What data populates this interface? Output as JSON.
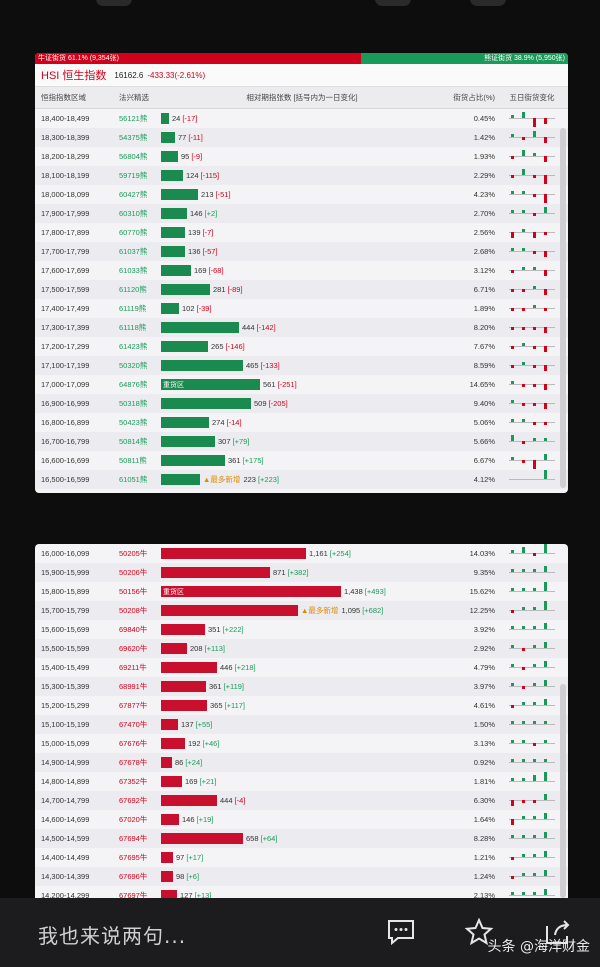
{
  "ratio": {
    "bull_label": "牛证街货 61.1% (9,354张)",
    "bear_label": "熊证街货 38.9% (5,950张)",
    "bull_fraction": 0.611
  },
  "index": {
    "name": "HSI 恒生指数",
    "price": "16162.6",
    "change": "-433.33(-2.61%)"
  },
  "headers": {
    "range": "恒指指数区域",
    "code": "法兴精选",
    "bar": "相对期指张数 [括号内为一日变化]",
    "pct": "街货占比(%)",
    "spark": "五日街货变化"
  },
  "bear_rows": [
    {
      "range": "18,400-18,499",
      "code": "56121熊",
      "value": "24",
      "change": "[-17]",
      "count": 24,
      "pct": "0.45%",
      "spark": [
        1,
        2,
        -3,
        -2
      ]
    },
    {
      "range": "18,300-18,399",
      "code": "54375熊",
      "value": "77",
      "change": "[-11]",
      "count": 77,
      "pct": "1.42%",
      "spark": [
        1,
        -1,
        2,
        -2
      ]
    },
    {
      "range": "18,200-18,299",
      "code": "56804熊",
      "value": "95",
      "change": "[-9]",
      "count": 95,
      "pct": "1.93%",
      "spark": [
        -1,
        2,
        1,
        -2
      ]
    },
    {
      "range": "18,100-18,199",
      "code": "59719熊",
      "value": "124",
      "change": "[-115]",
      "count": 124,
      "pct": "2.29%",
      "spark": [
        -1,
        2,
        -1,
        -3
      ]
    },
    {
      "range": "18,000-18,099",
      "code": "60427熊",
      "value": "213",
      "change": "[-51]",
      "count": 213,
      "pct": "4.23%",
      "spark": [
        1,
        1,
        -1,
        -3
      ]
    },
    {
      "range": "17,900-17,999",
      "code": "60310熊",
      "value": "146",
      "change": "[+2]",
      "count": 146,
      "pct": "2.70%",
      "spark": [
        1,
        1,
        -1,
        2
      ]
    },
    {
      "range": "17,800-17,899",
      "code": "60770熊",
      "value": "139",
      "change": "[-7]",
      "count": 139,
      "pct": "2.56%",
      "spark": [
        -2,
        1,
        -2,
        -1
      ]
    },
    {
      "range": "17,700-17,799",
      "code": "61037熊",
      "value": "136",
      "change": "[-57]",
      "count": 136,
      "pct": "2.68%",
      "spark": [
        1,
        1,
        -1,
        -2
      ]
    },
    {
      "range": "17,600-17,699",
      "code": "61033熊",
      "value": "169",
      "change": "[-68]",
      "count": 169,
      "pct": "3.12%",
      "spark": [
        -1,
        1,
        1,
        -2
      ]
    },
    {
      "range": "17,500-17,599",
      "code": "61120熊",
      "value": "281",
      "change": "[-89]",
      "count": 281,
      "pct": "6.71%",
      "spark": [
        -1,
        -1,
        1,
        -2
      ]
    },
    {
      "range": "17,400-17,499",
      "code": "61119熊",
      "value": "102",
      "change": "[-39]",
      "count": 102,
      "pct": "1.89%",
      "spark": [
        -1,
        -1,
        1,
        -1
      ]
    },
    {
      "range": "17,300-17,399",
      "code": "61118熊",
      "value": "444",
      "change": "[-142]",
      "count": 444,
      "pct": "8.20%",
      "spark": [
        -1,
        -1,
        -1,
        -2
      ]
    },
    {
      "range": "17,200-17,299",
      "code": "61423熊",
      "value": "265",
      "change": "[-146]",
      "count": 265,
      "pct": "7.67%",
      "spark": [
        -1,
        1,
        -1,
        -2
      ]
    },
    {
      "range": "17,100-17,199",
      "code": "50320熊",
      "value": "465",
      "change": "[-133]",
      "count": 465,
      "pct": "8.59%",
      "spark": [
        -1,
        1,
        -1,
        -2
      ]
    },
    {
      "range": "17,000-17,099",
      "code": "64876熊",
      "value": "561",
      "change": "[-251]",
      "count": 561,
      "pct": "14.65%",
      "spark": [
        1,
        -1,
        -1,
        -2
      ],
      "label": "重货区"
    },
    {
      "range": "16,900-16,999",
      "code": "50318熊",
      "value": "509",
      "change": "[-205]",
      "count": 509,
      "pct": "9.40%",
      "spark": [
        1,
        -1,
        -1,
        -2
      ]
    },
    {
      "range": "16,800-16,899",
      "code": "50423熊",
      "value": "274",
      "change": "[-14]",
      "count": 274,
      "pct": "5.06%",
      "spark": [
        1,
        1,
        -1,
        -1
      ]
    },
    {
      "range": "16,700-16,799",
      "code": "50814熊",
      "value": "307",
      "change": "[+79]",
      "count": 307,
      "pct": "5.66%",
      "spark": [
        2,
        -1,
        1,
        1
      ]
    },
    {
      "range": "16,600-16,699",
      "code": "50811熊",
      "value": "361",
      "change": "[+175]",
      "count": 361,
      "pct": "6.67%",
      "spark": [
        1,
        -1,
        -3,
        2
      ]
    },
    {
      "range": "16,500-16,599",
      "code": "61051熊",
      "value": "223",
      "change": "[+223]",
      "count": 223,
      "pct": "4.12%",
      "spark": [
        0,
        0,
        0,
        3
      ],
      "note": "▲最多新增"
    }
  ],
  "bull_rows": [
    {
      "range": "16,000-16,099",
      "code": "50205牛",
      "value": "1,161",
      "change": "[+254]",
      "count": 1161,
      "pct": "14.03%",
      "spark": [
        1,
        2,
        -1,
        3
      ]
    },
    {
      "range": "15,900-15,999",
      "code": "50206牛",
      "value": "871",
      "change": "[+382]",
      "count": 871,
      "pct": "9.35%",
      "spark": [
        1,
        1,
        1,
        2
      ]
    },
    {
      "range": "15,800-15,899",
      "code": "50156牛",
      "value": "1,438",
      "change": "[+493]",
      "count": 1438,
      "pct": "15.62%",
      "spark": [
        1,
        1,
        1,
        3
      ],
      "label": "重货区"
    },
    {
      "range": "15,700-15,799",
      "code": "50208牛",
      "value": "1,095",
      "change": "[+682]",
      "count": 1095,
      "pct": "12.25%",
      "spark": [
        -1,
        1,
        1,
        3
      ],
      "note": "▲最多新增"
    },
    {
      "range": "15,600-15,699",
      "code": "69840牛",
      "value": "351",
      "change": "[+222]",
      "count": 351,
      "pct": "3.92%",
      "spark": [
        1,
        1,
        1,
        2
      ]
    },
    {
      "range": "15,500-15,599",
      "code": "69620牛",
      "value": "208",
      "change": "[+113]",
      "count": 208,
      "pct": "2.92%",
      "spark": [
        1,
        -1,
        1,
        2
      ]
    },
    {
      "range": "15,400-15,499",
      "code": "69211牛",
      "value": "446",
      "change": "[+218]",
      "count": 446,
      "pct": "4.79%",
      "spark": [
        1,
        -1,
        1,
        2
      ]
    },
    {
      "range": "15,300-15,399",
      "code": "68991牛",
      "value": "361",
      "change": "[+119]",
      "count": 361,
      "pct": "3.97%",
      "spark": [
        1,
        -1,
        1,
        2
      ]
    },
    {
      "range": "15,200-15,299",
      "code": "67877牛",
      "value": "365",
      "change": "[+117]",
      "count": 365,
      "pct": "4.61%",
      "spark": [
        -1,
        1,
        1,
        2
      ]
    },
    {
      "range": "15,100-15,199",
      "code": "67470牛",
      "value": "137",
      "change": "[+55]",
      "count": 137,
      "pct": "1.50%",
      "spark": [
        1,
        1,
        1,
        1
      ]
    },
    {
      "range": "15,000-15,099",
      "code": "67676牛",
      "value": "192",
      "change": "[+46]",
      "count": 192,
      "pct": "3.13%",
      "spark": [
        1,
        1,
        -1,
        1
      ]
    },
    {
      "range": "14,900-14,999",
      "code": "67678牛",
      "value": "86",
      "change": "[+24]",
      "count": 86,
      "pct": "0.92%",
      "spark": [
        1,
        1,
        1,
        1
      ]
    },
    {
      "range": "14,800-14,899",
      "code": "67352牛",
      "value": "169",
      "change": "[+21]",
      "count": 169,
      "pct": "1.81%",
      "spark": [
        1,
        1,
        2,
        3
      ]
    },
    {
      "range": "14,700-14,799",
      "code": "67692牛",
      "value": "444",
      "change": "[-4]",
      "count": 444,
      "pct": "6.30%",
      "spark": [
        -2,
        -1,
        -1,
        2
      ]
    },
    {
      "range": "14,600-14,699",
      "code": "67020牛",
      "value": "146",
      "change": "[+19]",
      "count": 146,
      "pct": "1.64%",
      "spark": [
        -2,
        1,
        1,
        2
      ]
    },
    {
      "range": "14,500-14,599",
      "code": "67694牛",
      "value": "658",
      "change": "[+64]",
      "count": 658,
      "pct": "8.28%",
      "spark": [
        1,
        1,
        1,
        2
      ]
    },
    {
      "range": "14,400-14,499",
      "code": "67695牛",
      "value": "97",
      "change": "[+17]",
      "count": 97,
      "pct": "1.21%",
      "spark": [
        -1,
        1,
        1,
        2
      ]
    },
    {
      "range": "14,300-14,399",
      "code": "67696牛",
      "value": "98",
      "change": "[+6]",
      "count": 98,
      "pct": "1.24%",
      "spark": [
        -1,
        1,
        1,
        2
      ]
    },
    {
      "range": "14,200-14,299",
      "code": "67697牛",
      "value": "127",
      "change": "[+13]",
      "count": 127,
      "pct": "2.13%",
      "spark": [
        1,
        1,
        1,
        2
      ]
    }
  ],
  "colors": {
    "bull": "#c8102e",
    "bear": "#1a8a4e"
  },
  "footer": {
    "comment_placeholder": "我也来说两句...",
    "attribution": "头条 @海洋财金"
  },
  "icons": {
    "comment": "comment-icon",
    "favorite": "star-icon",
    "share": "share-icon"
  }
}
